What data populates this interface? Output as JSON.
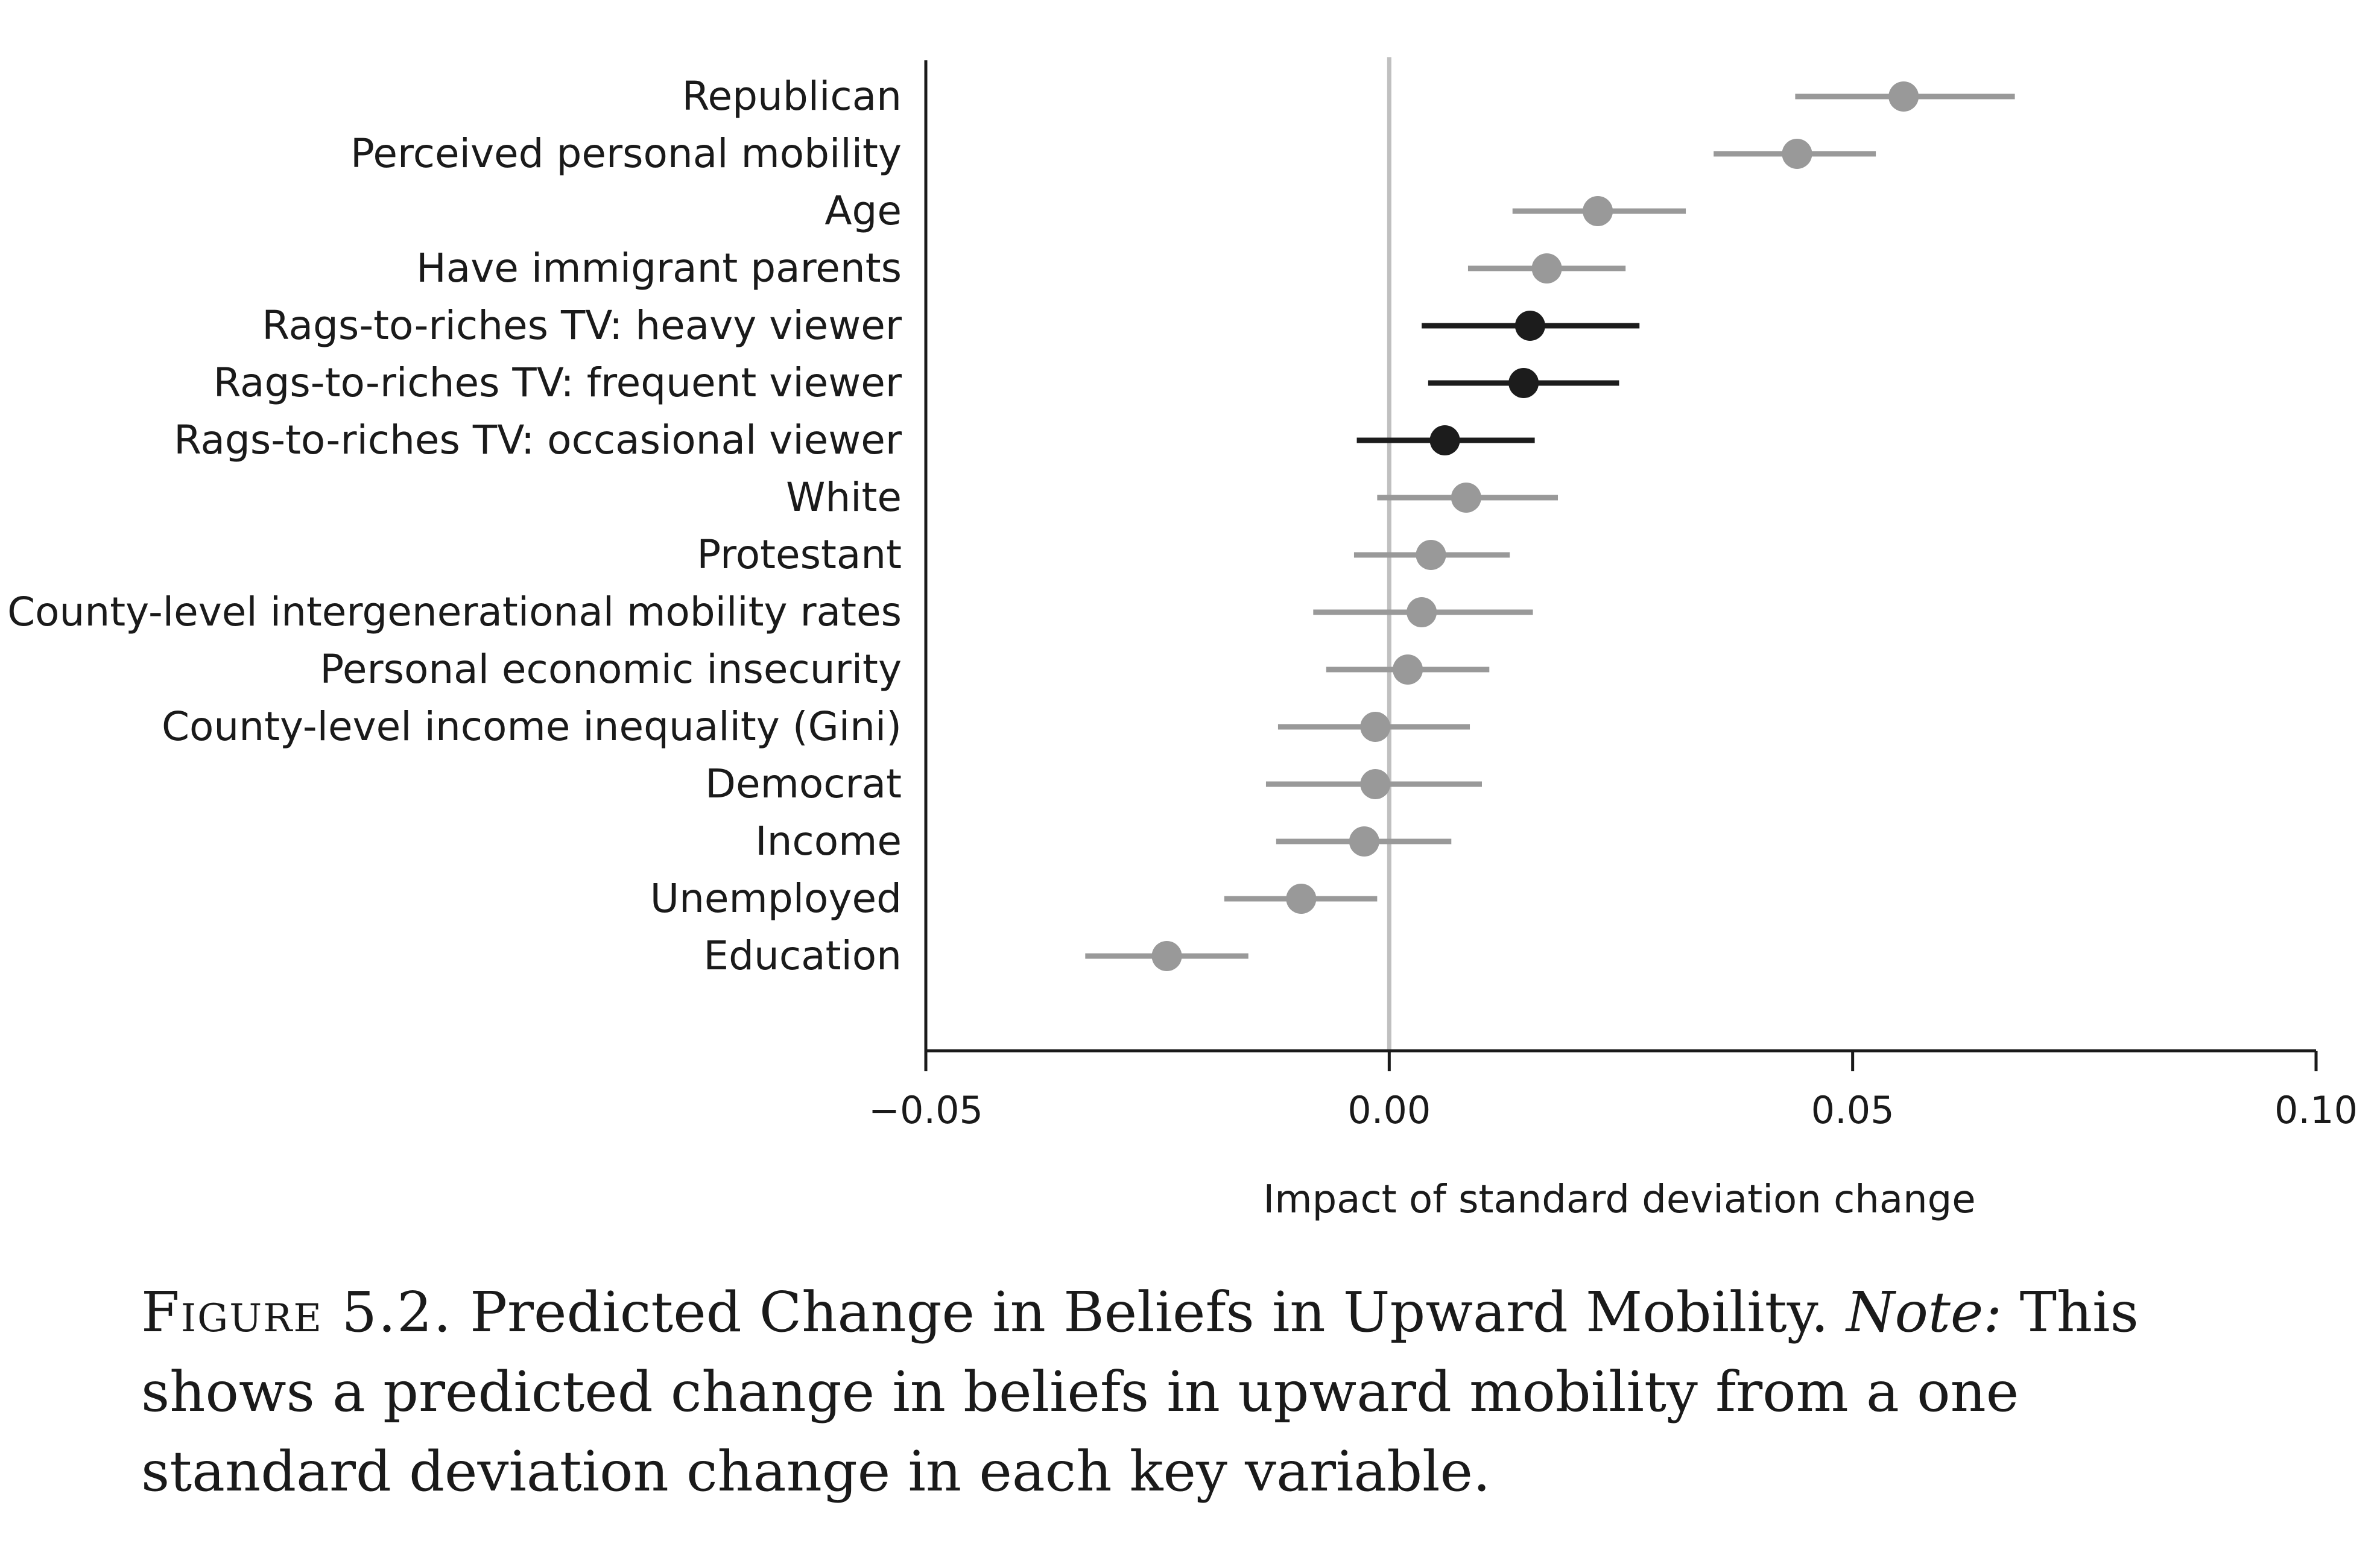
{
  "chart_data": {
    "type": "dot-whisker",
    "xlabel": "Impact of standard deviation change",
    "xlim": [
      -0.05,
      0.1
    ],
    "xticks": [
      -0.05,
      0.0,
      0.05,
      0.1
    ],
    "xtick_labels": [
      "−0.05",
      "0.00",
      "0.05",
      "0.10"
    ],
    "reference_line": 0.0,
    "legend": "none",
    "grid": false,
    "colors": {
      "highlight": "#1c1c1c",
      "default": "#999999",
      "reference": "#c0c0c0",
      "axis": "#1a1a1a"
    },
    "items": [
      {
        "label": "Republican",
        "estimate": 0.0555,
        "lower": 0.0438,
        "upper": 0.0675,
        "highlight": false
      },
      {
        "label": "Perceived personal mobility",
        "estimate": 0.044,
        "lower": 0.035,
        "upper": 0.0525,
        "highlight": false
      },
      {
        "label": "Age",
        "estimate": 0.0225,
        "lower": 0.0133,
        "upper": 0.032,
        "highlight": false
      },
      {
        "label": "Have immigrant parents",
        "estimate": 0.017,
        "lower": 0.0085,
        "upper": 0.0255,
        "highlight": false
      },
      {
        "label": "Rags-to-riches TV: heavy viewer",
        "estimate": 0.0152,
        "lower": 0.0035,
        "upper": 0.027,
        "highlight": true
      },
      {
        "label": "Rags-to-riches TV: frequent viewer",
        "estimate": 0.0145,
        "lower": 0.0042,
        "upper": 0.0248,
        "highlight": true
      },
      {
        "label": "Rags-to-riches TV: occasional viewer",
        "estimate": 0.006,
        "lower": -0.0035,
        "upper": 0.0157,
        "highlight": true
      },
      {
        "label": "White",
        "estimate": 0.0083,
        "lower": -0.0013,
        "upper": 0.0182,
        "highlight": false
      },
      {
        "label": "Protestant",
        "estimate": 0.0045,
        "lower": -0.0038,
        "upper": 0.013,
        "highlight": false
      },
      {
        "label": "County-level intergenerational mobility rates",
        "estimate": 0.0035,
        "lower": -0.0082,
        "upper": 0.0155,
        "highlight": false
      },
      {
        "label": "Personal economic insecurity",
        "estimate": 0.002,
        "lower": -0.0068,
        "upper": 0.0108,
        "highlight": false
      },
      {
        "label": "County-level income inequality (Gini)",
        "estimate": -0.0015,
        "lower": -0.012,
        "upper": 0.0087,
        "highlight": false
      },
      {
        "label": "Democrat",
        "estimate": -0.0015,
        "lower": -0.0133,
        "upper": 0.01,
        "highlight": false
      },
      {
        "label": "Income",
        "estimate": -0.0027,
        "lower": -0.0122,
        "upper": 0.0067,
        "highlight": false
      },
      {
        "label": "Unemployed",
        "estimate": -0.0095,
        "lower": -0.0178,
        "upper": -0.0013,
        "highlight": false
      },
      {
        "label": "Education",
        "estimate": -0.024,
        "lower": -0.0328,
        "upper": -0.0152,
        "highlight": false
      }
    ]
  },
  "caption": {
    "figure_label": "Figure 5.2.",
    "title": "Predicted Change in Beliefs in Upward Mobility.",
    "note_label": "Note:",
    "note_text": "This shows a predicted change in beliefs in upward mobility from a one standard deviation change in each key variable."
  }
}
